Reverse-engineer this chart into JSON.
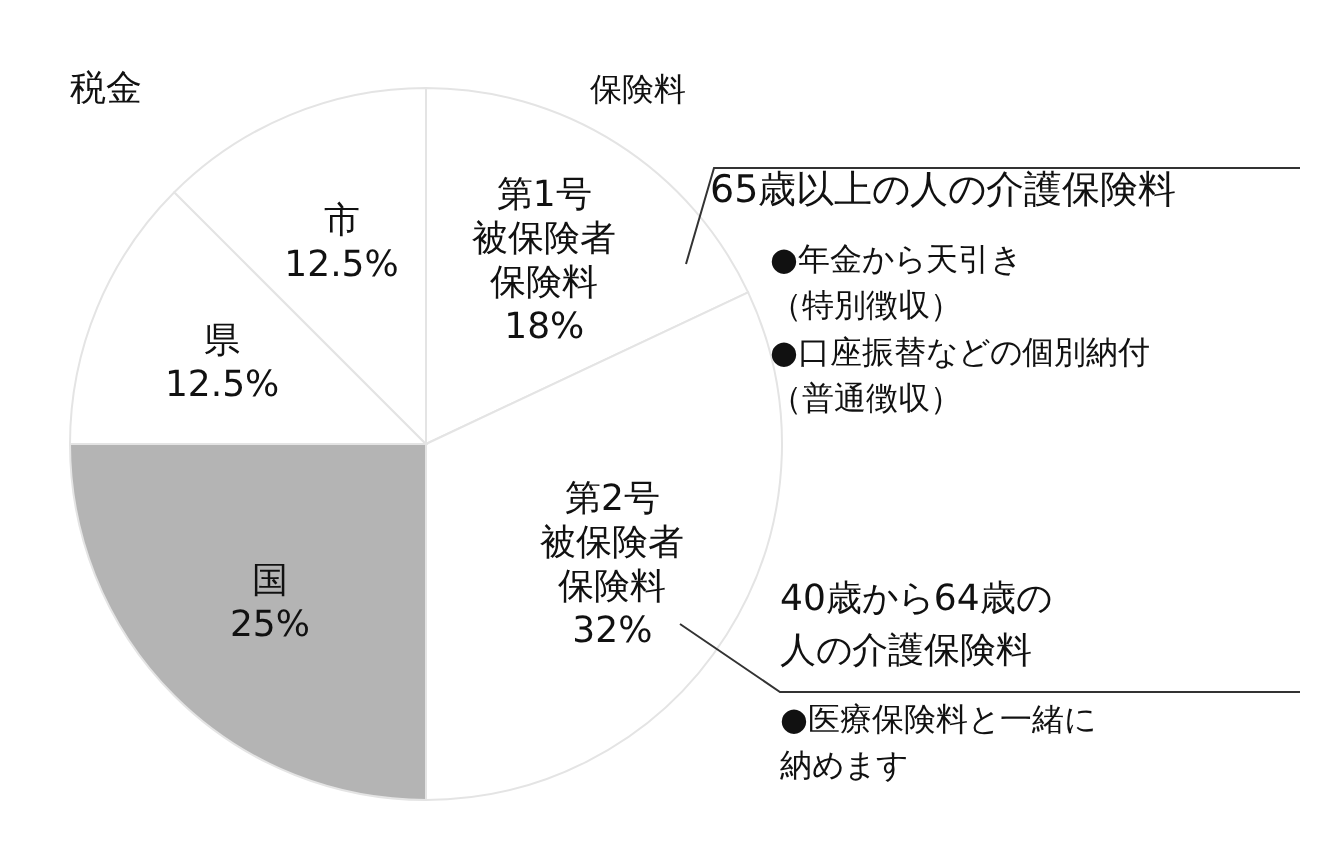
{
  "chart_data": {
    "type": "pie",
    "categories": [
      "第1号被保険者保険料",
      "第2号被保険者保険料",
      "国",
      "県",
      "市"
    ],
    "values": [
      18,
      32,
      25,
      12.5,
      12.5
    ],
    "value_labels": [
      "18%",
      "32%",
      "25%",
      "12.5%",
      "12.5%"
    ],
    "colors": [
      "#ffffff",
      "#ffffff",
      "#b4b4b4",
      "#ffffff",
      "#ffffff"
    ],
    "annotations": [
      "税金",
      "保険料",
      "65歳以上の人の介護保険料",
      "●年金から天引き（特別徴収）●口座振替などの個別納付（普通徴収）",
      "40歳から64歳の人の介護保険料",
      "●医療保険料と一緒に納めます"
    ]
  }
}
